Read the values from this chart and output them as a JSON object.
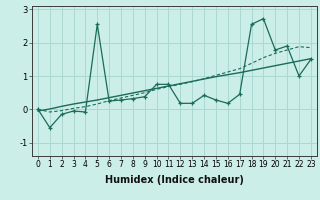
{
  "xlabel": "Humidex (Indice chaleur)",
  "background_color": "#cceee8",
  "line_color": "#1a6b5a",
  "grid_color": "#aad8d0",
  "xlim": [
    -0.5,
    23.5
  ],
  "ylim": [
    -1.4,
    3.1
  ],
  "yticks": [
    -1,
    0,
    1,
    2,
    3
  ],
  "xticks": [
    0,
    1,
    2,
    3,
    4,
    5,
    6,
    7,
    8,
    9,
    10,
    11,
    12,
    13,
    14,
    15,
    16,
    17,
    18,
    19,
    20,
    21,
    22,
    23
  ],
  "x_data": [
    0,
    1,
    2,
    3,
    4,
    5,
    6,
    7,
    8,
    9,
    10,
    11,
    12,
    13,
    14,
    15,
    16,
    17,
    18,
    19,
    20,
    21,
    22,
    23
  ],
  "y_main": [
    0.0,
    -0.55,
    -0.15,
    -0.05,
    -0.08,
    2.55,
    0.25,
    0.28,
    0.32,
    0.38,
    0.75,
    0.75,
    0.18,
    0.18,
    0.42,
    0.28,
    0.18,
    0.45,
    2.55,
    2.72,
    1.78,
    1.9,
    1.0,
    1.5
  ],
  "y_trend": [
    -0.05,
    0.01,
    0.09,
    0.16,
    0.22,
    0.28,
    0.35,
    0.42,
    0.49,
    0.56,
    0.63,
    0.7,
    0.77,
    0.84,
    0.91,
    0.98,
    1.04,
    1.1,
    1.17,
    1.24,
    1.31,
    1.38,
    1.45,
    1.52
  ],
  "y_smooth": [
    0.0,
    -0.08,
    -0.04,
    0.03,
    0.08,
    0.16,
    0.26,
    0.34,
    0.42,
    0.5,
    0.6,
    0.68,
    0.75,
    0.83,
    0.92,
    1.02,
    1.12,
    1.22,
    1.38,
    1.55,
    1.68,
    1.78,
    1.88,
    1.85
  ],
  "xlabel_fontsize": 7,
  "tick_fontsize": 5.5,
  "ytick_fontsize": 6
}
